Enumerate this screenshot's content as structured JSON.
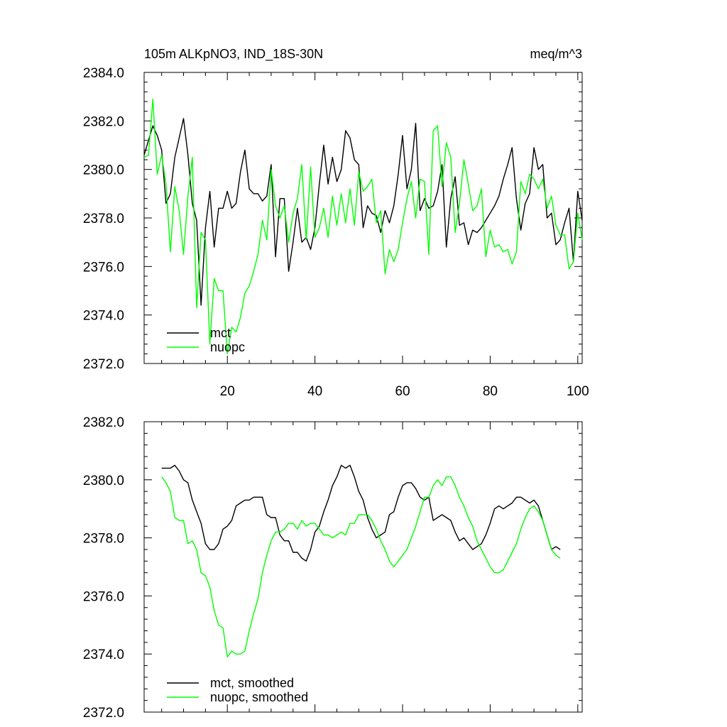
{
  "chart_data": [
    {
      "type": "line",
      "title": "105m ALKpNO3, IND_18S-30N",
      "units": "meq/m^3",
      "xlim": [
        1,
        101
      ],
      "ylim": [
        2372,
        2384
      ],
      "x_ticks": [
        20,
        40,
        60,
        80,
        100
      ],
      "y_ticks": [
        "2372.0",
        "2374.0",
        "2376.0",
        "2378.0",
        "2380.0",
        "2382.0",
        "2384.0"
      ],
      "legend": {
        "placement": "bottom-left"
      },
      "grid": false,
      "series": [
        {
          "name": "mct",
          "color": "#000000",
          "values": [
            2380.6,
            2381.2,
            2381.8,
            2381.4,
            2380.8,
            2378.6,
            2379.0,
            2380.5,
            2381.3,
            2382.1,
            2380.6,
            2378.6,
            2377.9,
            2374.4,
            2377.6,
            2379.1,
            2376.8,
            2378.4,
            2378.4,
            2379.1,
            2378.4,
            2378.6,
            2379.9,
            2380.8,
            2379.2,
            2379.0,
            2379.0,
            2378.7,
            2378.9,
            2380.2,
            2376.4,
            2378.8,
            2378.8,
            2375.8,
            2377.0,
            2378.4,
            2377.0,
            2377.2,
            2376.7,
            2377.6,
            2379.4,
            2381.0,
            2379.4,
            2380.5,
            2379.5,
            2380.0,
            2381.6,
            2381.3,
            2380.4,
            2380.2,
            2377.6,
            2378.5,
            2378.2,
            2378.1,
            2377.4,
            2378.3,
            2377.8,
            2378.5,
            2379.8,
            2381.4,
            2379.2,
            2380.0,
            2381.9,
            2378.3,
            2378.8,
            2378.4,
            2378.5,
            2379.1,
            2380.2,
            2376.8,
            2378.8,
            2379.7,
            2377.7,
            2377.8,
            2376.9,
            2377.5,
            2377.4,
            2377.6,
            2377.9,
            2378.2,
            2378.5,
            2378.9,
            2379.6,
            2380.2,
            2380.9,
            2378.8,
            2377.5,
            2378.6,
            2379.0,
            2380.9,
            2380.0,
            2380.2,
            2378.0,
            2378.2,
            2376.9,
            2377.1,
            2377.8,
            2378.4,
            2376.2,
            2379.1,
            2377.9
          ]
        },
        {
          "name": "nuopc",
          "color": "#00ff00",
          "values": [
            2380.5,
            2380.6,
            2382.9,
            2379.8,
            2380.6,
            2379.4,
            2376.6,
            2379.3,
            2378.3,
            2376.5,
            2378.9,
            2380.5,
            2374.3,
            2377.4,
            2377.1,
            2372.8,
            2375.5,
            2375.0,
            2375.0,
            2372.4,
            2373.5,
            2373.3,
            2373.9,
            2374.9,
            2375.2,
            2375.8,
            2376.5,
            2377.9,
            2377.1,
            2380.0,
            2378.5,
            2378.0,
            2378.5,
            2377.0,
            2378.2,
            2378.8,
            2380.2,
            2377.1,
            2380.1,
            2377.2,
            2377.6,
            2378.4,
            2377.2,
            2378.9,
            2377.7,
            2379.0,
            2377.8,
            2379.2,
            2377.7,
            2379.9,
            2379.1,
            2379.3,
            2379.6,
            2377.8,
            2378.3,
            2375.7,
            2376.7,
            2376.2,
            2376.7,
            2377.8,
            2378.8,
            2379.5,
            2378.0,
            2379.6,
            2379.5,
            2376.5,
            2381.6,
            2381.8,
            2379.3,
            2381.1,
            2380.5,
            2377.4,
            2378.6,
            2380.4,
            2379.4,
            2378.3,
            2378.5,
            2379.2,
            2376.4,
            2377.5,
            2376.8,
            2376.9,
            2376.6,
            2376.7,
            2376.1,
            2376.6,
            2379.5,
            2379.0,
            2379.8,
            2379.6,
            2379.2,
            2379.6,
            2378.4,
            2378.9,
            2377.7,
            2377.3,
            2377.3,
            2375.9,
            2376.2,
            2378.2,
            2377.1
          ]
        }
      ]
    },
    {
      "type": "line",
      "title": "",
      "xlim": [
        1,
        101
      ],
      "ylim": [
        2372,
        2382
      ],
      "y_ticks": [
        "2372.0",
        "2374.0",
        "2376.0",
        "2378.0",
        "2380.0",
        "2382.0"
      ],
      "legend": {
        "placement": "bottom-left"
      },
      "grid": false,
      "series": [
        {
          "name": "mct, smoothed",
          "color": "#000000",
          "x_start": 5,
          "values": [
            2380.4,
            2380.4,
            2380.4,
            2380.5,
            2380.3,
            2380.0,
            2379.9,
            2379.3,
            2378.9,
            2378.5,
            2377.8,
            2377.6,
            2377.6,
            2377.8,
            2378.3,
            2378.4,
            2378.6,
            2379.1,
            2379.2,
            2379.3,
            2379.3,
            2379.4,
            2379.4,
            2379.4,
            2378.8,
            2378.7,
            2378.7,
            2378.1,
            2377.9,
            2377.9,
            2377.5,
            2377.5,
            2377.3,
            2377.2,
            2377.6,
            2378.2,
            2378.4,
            2378.9,
            2379.3,
            2379.8,
            2380.1,
            2380.5,
            2380.4,
            2380.5,
            2380.1,
            2379.6,
            2379.3,
            2378.7,
            2378.3,
            2378.0,
            2378.1,
            2378.2,
            2378.8,
            2378.9,
            2379.4,
            2379.8,
            2379.9,
            2379.9,
            2379.7,
            2379.4,
            2379.3,
            2379.4,
            2378.6,
            2378.7,
            2378.8,
            2378.7,
            2378.6,
            2378.2,
            2377.9,
            2378.0,
            2377.8,
            2377.6,
            2377.7,
            2377.8,
            2378.1,
            2378.5,
            2379.0,
            2379.1,
            2379.0,
            2379.1,
            2379.2,
            2379.4,
            2379.4,
            2379.3,
            2379.2,
            2379.3,
            2379.1,
            2378.6,
            2378.1,
            2377.6,
            2377.7,
            2377.6
          ]
        },
        {
          "name": "nuopc, smoothed",
          "color": "#00ff00",
          "x_start": 5,
          "values": [
            2380.1,
            2379.9,
            2379.6,
            2378.7,
            2378.6,
            2378.6,
            2377.8,
            2377.9,
            2377.6,
            2376.8,
            2376.7,
            2376.3,
            2375.5,
            2375.0,
            2374.9,
            2373.9,
            2374.1,
            2374.0,
            2374.0,
            2374.1,
            2374.8,
            2375.4,
            2375.9,
            2376.8,
            2377.4,
            2377.9,
            2378.2,
            2378.2,
            2378.3,
            2378.5,
            2378.5,
            2378.3,
            2378.6,
            2378.4,
            2378.5,
            2378.5,
            2378.3,
            2378.1,
            2378.1,
            2378.0,
            2378.1,
            2378.2,
            2378.1,
            2378.5,
            2378.5,
            2378.8,
            2378.8,
            2378.8,
            2378.6,
            2378.3,
            2377.9,
            2377.6,
            2377.2,
            2377.0,
            2377.2,
            2377.4,
            2377.6,
            2378.0,
            2378.4,
            2378.9,
            2379.4,
            2379.4,
            2379.8,
            2380.0,
            2379.8,
            2380.1,
            2380.1,
            2379.8,
            2379.4,
            2379.1,
            2378.7,
            2378.4,
            2377.9,
            2377.6,
            2377.3,
            2377.0,
            2376.8,
            2376.8,
            2376.9,
            2377.2,
            2377.5,
            2377.8,
            2378.3,
            2378.7,
            2379.0,
            2379.1,
            2378.9,
            2378.6,
            2378.1,
            2377.6,
            2377.4,
            2377.3
          ]
        }
      ]
    }
  ]
}
